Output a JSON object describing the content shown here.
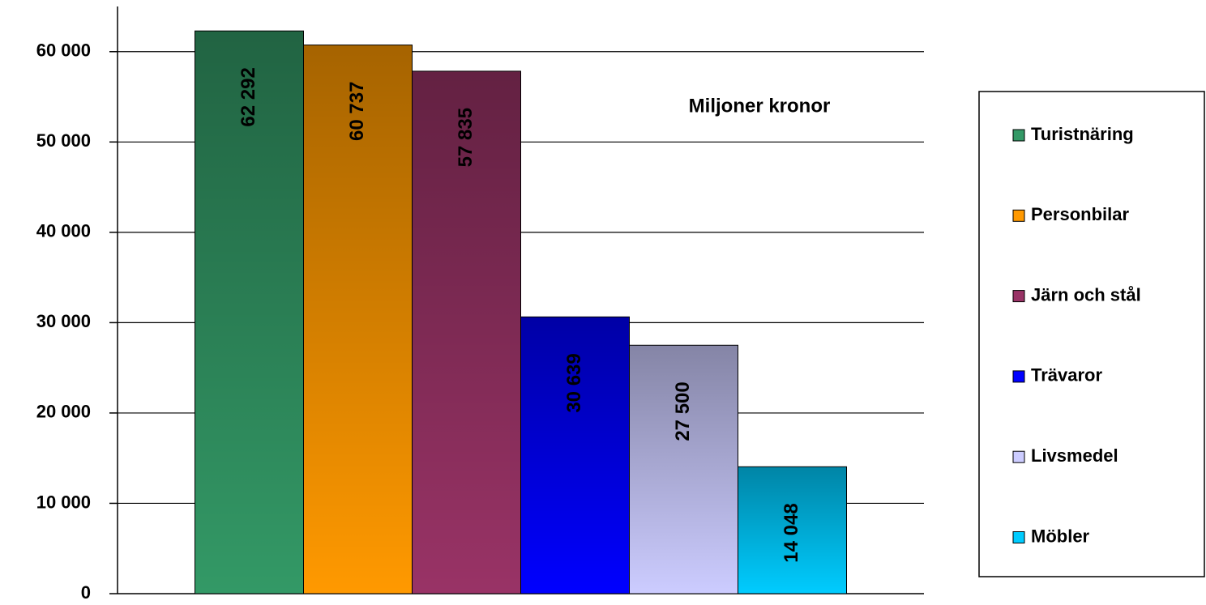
{
  "chart_data": {
    "type": "bar",
    "annotation": "Miljoner kronor",
    "series": [
      {
        "name": "Turistnäring",
        "color": "#339966",
        "values": [
          62292
        ],
        "value_labels": [
          "62 292"
        ]
      },
      {
        "name": "Personbilar",
        "color": "#ff9900",
        "values": [
          60737
        ],
        "value_labels": [
          "60 737"
        ]
      },
      {
        "name": "Järn och stål",
        "color": "#993366",
        "values": [
          57835
        ],
        "value_labels": [
          "57 835"
        ]
      },
      {
        "name": "Trävaror",
        "color": "#0000ff",
        "values": [
          30639
        ],
        "value_labels": [
          "30 639"
        ]
      },
      {
        "name": "Livsmedel",
        "color": "#ccccff",
        "values": [
          27500
        ],
        "value_labels": [
          "27 500"
        ]
      },
      {
        "name": "Möbler",
        "color": "#00ccff",
        "values": [
          14048
        ],
        "value_labels": [
          "14 048"
        ]
      }
    ],
    "ylim": [
      0,
      65000
    ],
    "yticks": [
      0,
      {
        "value": 10000,
        "label": "10 000"
      },
      {
        "value": 20000,
        "label": "20 000"
      },
      {
        "value": 30000,
        "label": "30 000"
      },
      {
        "value": 40000,
        "label": "40 000"
      },
      {
        "value": 50000,
        "label": "50 000"
      },
      {
        "value": 60000,
        "label": "60 000"
      }
    ],
    "grid": true,
    "legend": "right"
  }
}
